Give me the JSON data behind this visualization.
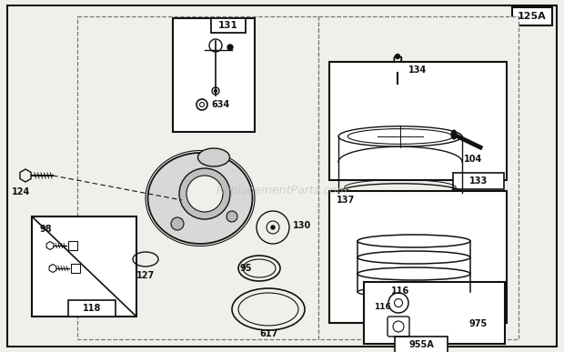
{
  "bg_color": "#f0f0eb",
  "col": "#111111",
  "watermark": "ReplacementParts.com",
  "fig_w": 6.2,
  "fig_h": 3.87,
  "dpi": 100
}
